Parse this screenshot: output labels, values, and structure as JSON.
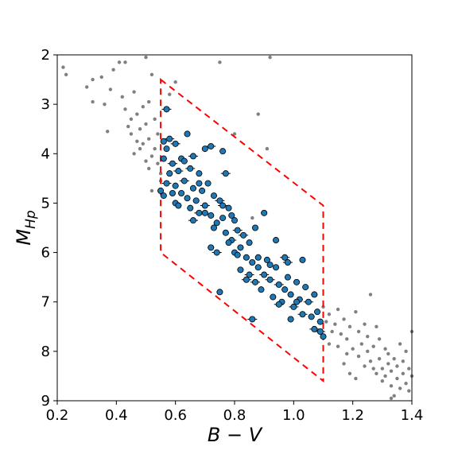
{
  "chart_data": {
    "type": "scatter",
    "title": "",
    "xlabel": "B − V",
    "ylabel": "M",
    "ylabel_subscript": "Hp",
    "xlim": [
      0.2,
      1.4
    ],
    "ylim": [
      9,
      2
    ],
    "y_inverted": true,
    "x_ticks": [
      0.2,
      0.4,
      0.6,
      0.8,
      1.0,
      1.2,
      1.4
    ],
    "x_tick_labels": [
      "0.2",
      "0.4",
      "0.6",
      "0.8",
      "1.0",
      "1.2",
      "1.4"
    ],
    "y_ticks": [
      2,
      3,
      4,
      5,
      6,
      7,
      8,
      9
    ],
    "y_tick_labels": [
      "2",
      "3",
      "4",
      "5",
      "6",
      "7",
      "8",
      "9"
    ],
    "grid": false,
    "colors": {
      "background_points": "#808080",
      "selected_points": "#1f77b4",
      "selected_edge": "#000000",
      "selection_box": "#ff0000"
    },
    "selection_box": {
      "style": "dashed",
      "vertices": [
        [
          0.55,
          2.5
        ],
        [
          1.1,
          5.05
        ],
        [
          1.1,
          8.6
        ],
        [
          0.55,
          6.0
        ]
      ]
    },
    "series": [
      {
        "role": "background",
        "marker": "small dots",
        "points": [
          [
            0.22,
            2.25
          ],
          [
            0.23,
            2.4
          ],
          [
            0.3,
            2.65
          ],
          [
            0.32,
            2.5
          ],
          [
            0.32,
            2.95
          ],
          [
            0.35,
            2.45
          ],
          [
            0.36,
            3.0
          ],
          [
            0.37,
            3.55
          ],
          [
            0.38,
            2.7
          ],
          [
            0.39,
            2.3
          ],
          [
            0.41,
            2.15
          ],
          [
            0.42,
            2.85
          ],
          [
            0.43,
            3.1
          ],
          [
            0.43,
            2.15
          ],
          [
            0.44,
            3.45
          ],
          [
            0.45,
            3.3
          ],
          [
            0.45,
            3.6
          ],
          [
            0.46,
            4.0
          ],
          [
            0.46,
            2.75
          ],
          [
            0.47,
            3.2
          ],
          [
            0.47,
            3.75
          ],
          [
            0.48,
            3.5
          ],
          [
            0.48,
            3.9
          ],
          [
            0.49,
            3.05
          ],
          [
            0.49,
            3.8
          ],
          [
            0.5,
            2.05
          ],
          [
            0.5,
            4.15
          ],
          [
            0.5,
            3.4
          ],
          [
            0.51,
            2.95
          ],
          [
            0.51,
            4.3
          ],
          [
            0.51,
            3.7
          ],
          [
            0.52,
            4.05
          ],
          [
            0.52,
            2.4
          ],
          [
            0.52,
            4.75
          ],
          [
            0.53,
            3.9
          ],
          [
            0.53,
            3.3
          ],
          [
            0.54,
            4.2
          ],
          [
            0.54,
            3.6
          ],
          [
            0.55,
            4.55
          ],
          [
            0.55,
            4.4
          ],
          [
            0.58,
            2.8
          ],
          [
            0.6,
            2.55
          ],
          [
            0.75,
            2.15
          ],
          [
            0.92,
            2.05
          ],
          [
            0.88,
            3.2
          ],
          [
            0.91,
            3.9
          ],
          [
            0.8,
            3.6
          ],
          [
            0.86,
            5.3
          ],
          [
            1.1,
            7.1
          ],
          [
            1.11,
            7.4
          ],
          [
            1.12,
            7.25
          ],
          [
            1.13,
            7.6
          ],
          [
            1.14,
            7.45
          ],
          [
            1.15,
            7.9
          ],
          [
            1.15,
            7.15
          ],
          [
            1.16,
            7.65
          ],
          [
            1.17,
            7.35
          ],
          [
            1.18,
            7.75
          ],
          [
            1.18,
            8.05
          ],
          [
            1.19,
            7.5
          ],
          [
            1.2,
            7.95
          ],
          [
            1.21,
            7.2
          ],
          [
            1.22,
            7.6
          ],
          [
            1.22,
            8.1
          ],
          [
            1.23,
            7.85
          ],
          [
            1.24,
            7.45
          ],
          [
            1.24,
            8.3
          ],
          [
            1.25,
            7.7
          ],
          [
            1.25,
            8.0
          ],
          [
            1.26,
            6.85
          ],
          [
            1.26,
            8.2
          ],
          [
            1.27,
            7.9
          ],
          [
            1.28,
            8.45
          ],
          [
            1.28,
            7.5
          ],
          [
            1.29,
            8.15
          ],
          [
            1.29,
            7.75
          ],
          [
            1.3,
            8.35
          ],
          [
            1.3,
            8.6
          ],
          [
            1.31,
            7.95
          ],
          [
            1.31,
            8.5
          ],
          [
            1.32,
            8.25
          ],
          [
            1.32,
            8.05
          ],
          [
            1.33,
            8.7
          ],
          [
            1.33,
            8.4
          ],
          [
            1.34,
            8.15
          ],
          [
            1.34,
            8.9
          ],
          [
            1.35,
            8.3
          ],
          [
            1.35,
            8.55
          ],
          [
            1.36,
            7.85
          ],
          [
            1.36,
            8.75
          ],
          [
            1.37,
            8.45
          ],
          [
            1.37,
            8.2
          ],
          [
            1.38,
            8.65
          ],
          [
            1.38,
            8.0
          ],
          [
            1.39,
            8.8
          ],
          [
            1.39,
            8.35
          ],
          [
            1.4,
            8.5
          ],
          [
            1.4,
            7.6
          ],
          [
            1.33,
            8.95
          ],
          [
            1.27,
            8.35
          ],
          [
            1.21,
            8.55
          ],
          [
            1.17,
            8.25
          ],
          [
            1.12,
            7.85
          ],
          [
            1.19,
            8.45
          ]
        ]
      },
      {
        "role": "selected",
        "marker": "circle with horizontal error bars",
        "points": [
          [
            0.57,
            3.1
          ],
          [
            0.56,
            3.75
          ],
          [
            0.57,
            3.9
          ],
          [
            0.58,
            3.7
          ],
          [
            0.56,
            4.1
          ],
          [
            0.58,
            4.4
          ],
          [
            0.57,
            4.6
          ],
          [
            0.56,
            4.85
          ],
          [
            0.55,
            4.75
          ],
          [
            0.59,
            4.2
          ],
          [
            0.6,
            4.65
          ],
          [
            0.6,
            5.0
          ],
          [
            0.61,
            4.35
          ],
          [
            0.62,
            4.8
          ],
          [
            0.62,
            4.1
          ],
          [
            0.63,
            4.55
          ],
          [
            0.64,
            4.9
          ],
          [
            0.64,
            3.6
          ],
          [
            0.65,
            4.3
          ],
          [
            0.65,
            5.1
          ],
          [
            0.66,
            4.7
          ],
          [
            0.66,
            4.05
          ],
          [
            0.67,
            4.95
          ],
          [
            0.68,
            4.4
          ],
          [
            0.68,
            5.2
          ],
          [
            0.69,
            4.75
          ],
          [
            0.7,
            3.9
          ],
          [
            0.7,
            5.05
          ],
          [
            0.71,
            4.6
          ],
          [
            0.72,
            5.25
          ],
          [
            0.72,
            3.85
          ],
          [
            0.73,
            4.85
          ],
          [
            0.74,
            5.4
          ],
          [
            0.75,
            4.95
          ],
          [
            0.76,
            5.3
          ],
          [
            0.76,
            3.95
          ],
          [
            0.77,
            4.4
          ],
          [
            0.77,
            5.6
          ],
          [
            0.78,
            5.1
          ],
          [
            0.79,
            5.75
          ],
          [
            0.8,
            5.35
          ],
          [
            0.8,
            6.0
          ],
          [
            0.81,
            5.55
          ],
          [
            0.82,
            5.9
          ],
          [
            0.82,
            6.35
          ],
          [
            0.83,
            5.65
          ],
          [
            0.84,
            6.1
          ],
          [
            0.85,
            5.8
          ],
          [
            0.85,
            6.45
          ],
          [
            0.86,
            6.2
          ],
          [
            0.87,
            5.5
          ],
          [
            0.87,
            6.6
          ],
          [
            0.88,
            6.3
          ],
          [
            0.89,
            6.75
          ],
          [
            0.9,
            6.45
          ],
          [
            0.9,
            5.2
          ],
          [
            0.91,
            6.15
          ],
          [
            0.92,
            6.55
          ],
          [
            0.93,
            6.9
          ],
          [
            0.94,
            6.3
          ],
          [
            0.95,
            6.65
          ],
          [
            0.96,
            7.0
          ],
          [
            0.97,
            6.75
          ],
          [
            0.97,
            6.1
          ],
          [
            0.98,
            6.5
          ],
          [
            0.99,
            6.85
          ],
          [
            1.0,
            7.1
          ],
          [
            1.01,
            6.6
          ],
          [
            1.02,
            6.95
          ],
          [
            1.03,
            7.25
          ],
          [
            1.03,
            6.15
          ],
          [
            1.04,
            6.7
          ],
          [
            1.05,
            7.0
          ],
          [
            1.06,
            7.3
          ],
          [
            1.07,
            6.85
          ],
          [
            1.07,
            7.55
          ],
          [
            1.08,
            7.2
          ],
          [
            1.09,
            7.4
          ],
          [
            1.09,
            7.6
          ],
          [
            1.1,
            7.7
          ],
          [
            0.75,
            6.8
          ],
          [
            0.86,
            7.35
          ],
          [
            0.99,
            7.35
          ],
          [
            0.94,
            5.75
          ],
          [
            0.98,
            6.2
          ],
          [
            0.78,
            5.8
          ],
          [
            0.72,
            5.9
          ],
          [
            0.74,
            6.0
          ],
          [
            0.68,
            4.6
          ],
          [
            0.63,
            4.15
          ],
          [
            0.6,
            3.8
          ],
          [
            0.59,
            4.8
          ],
          [
            0.61,
            5.05
          ],
          [
            0.66,
            5.35
          ],
          [
            0.7,
            5.2
          ],
          [
            0.73,
            5.5
          ],
          [
            0.76,
            5.05
          ],
          [
            0.79,
            5.25
          ],
          [
            0.81,
            6.05
          ],
          [
            0.84,
            6.55
          ],
          [
            0.88,
            6.1
          ],
          [
            0.92,
            6.25
          ],
          [
            0.95,
            7.05
          ],
          [
            1.01,
            7.0
          ]
        ]
      }
    ]
  }
}
